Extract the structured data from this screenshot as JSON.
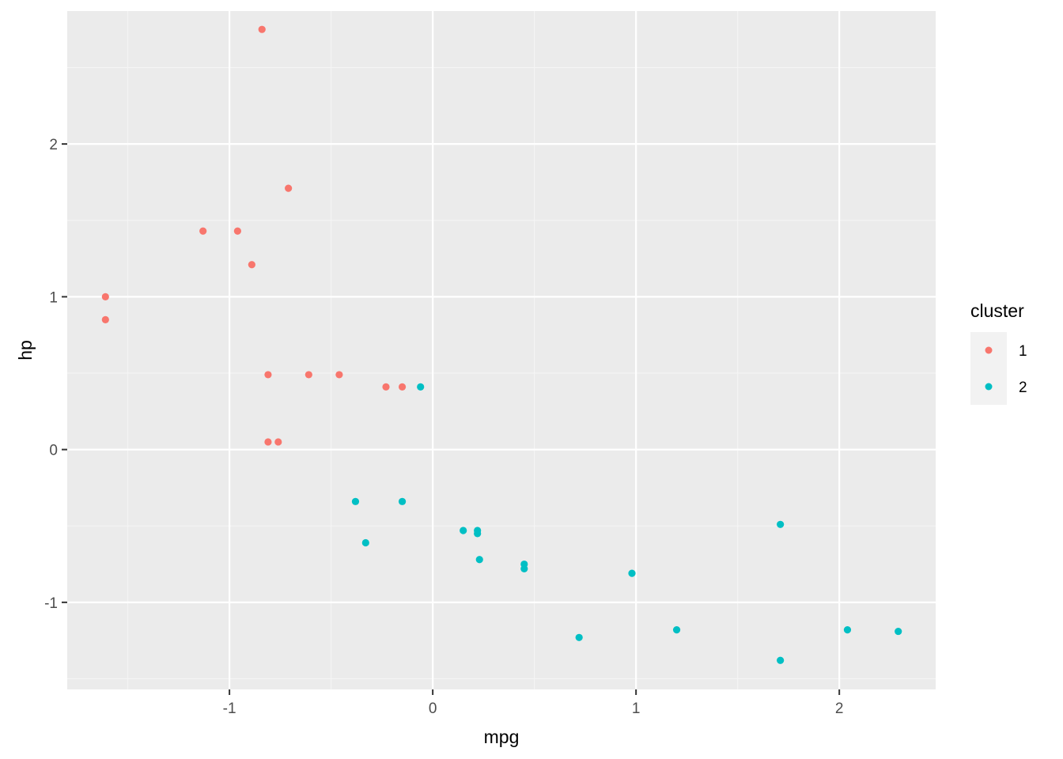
{
  "chart_data": {
    "type": "scatter",
    "xlabel": "mpg",
    "ylabel": "hp",
    "xlim": [
      -1.798,
      2.474
    ],
    "ylim": [
      -1.57,
      2.87
    ],
    "x_ticks": [
      -1,
      0,
      1,
      2
    ],
    "x_tick_labels": [
      "-1",
      "0",
      "1",
      "2"
    ],
    "x_minor_ticks": [
      -1.5,
      -0.5,
      0.5,
      1.5
    ],
    "y_ticks": [
      -1,
      0,
      1,
      2
    ],
    "y_tick_labels": [
      "-1",
      "0",
      "1",
      "2"
    ],
    "y_minor_ticks": [
      -1.5,
      -0.5,
      0.5,
      1.5,
      2.5
    ],
    "grid": true,
    "legend": {
      "title": "cluster",
      "position": "right",
      "entries": [
        {
          "label": "1",
          "color": "#F8766D"
        },
        {
          "label": "2",
          "color": "#00BFC4"
        }
      ]
    },
    "colors": {
      "panel_background": "#EBEBEB",
      "grid_major": "#FFFFFF",
      "grid_minor": "#F5F5F5",
      "tick": "#333333"
    },
    "series": [
      {
        "name": "1",
        "color": "#F8766D",
        "points": [
          {
            "x": -0.84,
            "y": 2.75
          },
          {
            "x": -0.71,
            "y": 1.71
          },
          {
            "x": -1.13,
            "y": 1.43
          },
          {
            "x": -0.96,
            "y": 1.43
          },
          {
            "x": -0.89,
            "y": 1.21
          },
          {
            "x": -1.61,
            "y": 1.0
          },
          {
            "x": -1.61,
            "y": 0.85
          },
          {
            "x": -0.81,
            "y": 0.49
          },
          {
            "x": -0.61,
            "y": 0.49
          },
          {
            "x": -0.46,
            "y": 0.49
          },
          {
            "x": -0.23,
            "y": 0.41
          },
          {
            "x": -0.15,
            "y": 0.41
          },
          {
            "x": -0.81,
            "y": 0.05
          },
          {
            "x": -0.76,
            "y": 0.05
          }
        ]
      },
      {
        "name": "2",
        "color": "#00BFC4",
        "points": [
          {
            "x": -0.06,
            "y": 0.41
          },
          {
            "x": -0.38,
            "y": -0.34
          },
          {
            "x": -0.15,
            "y": -0.34
          },
          {
            "x": -0.33,
            "y": -0.61
          },
          {
            "x": 0.15,
            "y": -0.53
          },
          {
            "x": 0.22,
            "y": -0.53
          },
          {
            "x": 0.22,
            "y": -0.55
          },
          {
            "x": 0.23,
            "y": -0.72
          },
          {
            "x": 0.45,
            "y": -0.75
          },
          {
            "x": 0.45,
            "y": -0.78
          },
          {
            "x": 0.72,
            "y": -1.23
          },
          {
            "x": 0.98,
            "y": -0.81
          },
          {
            "x": 1.2,
            "y": -1.18
          },
          {
            "x": 1.71,
            "y": -0.49
          },
          {
            "x": 1.71,
            "y": -1.38
          },
          {
            "x": 2.04,
            "y": -1.18
          },
          {
            "x": 2.29,
            "y": -1.19
          }
        ]
      }
    ]
  }
}
